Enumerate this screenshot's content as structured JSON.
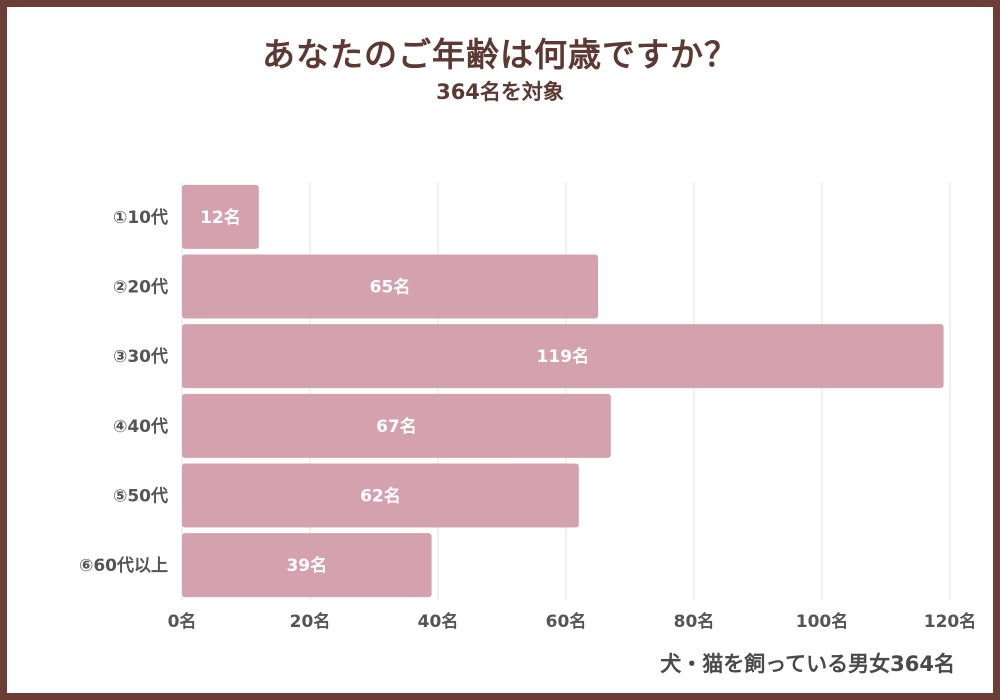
{
  "title": "あなたのご年齢は何歳ですか？",
  "subtitle": "364名を対象",
  "footer": "犬・猫を飼っている男女364名",
  "colors": {
    "bar": "#d4a1af",
    "frame": "#6b3f37",
    "title": "#5c3a33",
    "grid": "#e6e6e6"
  },
  "chart_data": {
    "type": "bar",
    "orientation": "horizontal",
    "categories": [
      "①10代",
      "②20代",
      "③30代",
      "④40代",
      "⑤50代",
      "⑥60代以上"
    ],
    "values": [
      12,
      65,
      119,
      67,
      62,
      39
    ],
    "data_labels": [
      "12名",
      "65名",
      "119名",
      "67名",
      "62名",
      "39名"
    ],
    "xlim": [
      0,
      120
    ],
    "xticks": [
      0,
      20,
      40,
      60,
      80,
      100,
      120
    ],
    "xtick_labels": [
      "0名",
      "20名",
      "40名",
      "60名",
      "80名",
      "100名",
      "120名"
    ],
    "grid": true,
    "legend": "none"
  }
}
